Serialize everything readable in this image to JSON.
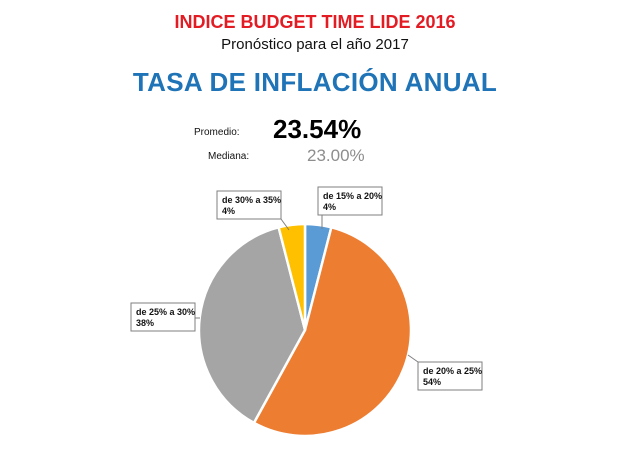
{
  "header": {
    "title": "INDICE BUDGET TIME LIDE 2016",
    "subtitle": "Pronóstico para el año 2017",
    "heading": "TASA DE INFLACIÓN ANUAL"
  },
  "stats": {
    "average_label": "Promedio:",
    "average_value": "23.54%",
    "median_label": "Mediana:",
    "median_value": "23.00%"
  },
  "chart_data": {
    "type": "pie",
    "title": "TASA DE INFLACIÓN ANUAL",
    "slices": [
      {
        "label": "de 15% a 20%",
        "value": 4,
        "value_label": "4%",
        "color": "#5b9bd5"
      },
      {
        "label": "de 20% a 25%",
        "value": 54,
        "value_label": "54%",
        "color": "#ed7d31"
      },
      {
        "label": "de 25% a 30%",
        "value": 38,
        "value_label": "38%",
        "color": "#a5a5a5"
      },
      {
        "label": "de 30% a 35%",
        "value": 4,
        "value_label": "4%",
        "color": "#ffc000"
      }
    ]
  }
}
